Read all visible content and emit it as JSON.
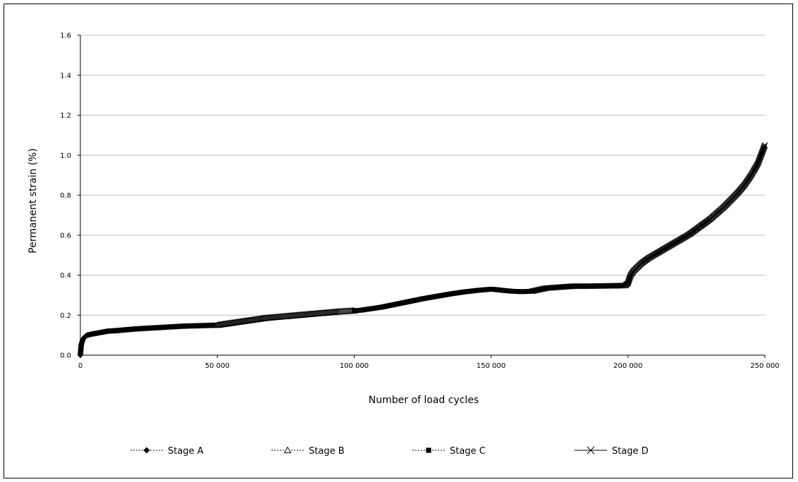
{
  "chart_data": {
    "type": "scatter",
    "title": "",
    "xlabel": "Number of load cycles",
    "ylabel": "Permanent strain (%)",
    "xlim": [
      0,
      250000
    ],
    "ylim": [
      0,
      1.6
    ],
    "x_ticks": [
      {
        "value": 0,
        "label": "0"
      },
      {
        "value": 50000,
        "label": "50 000"
      },
      {
        "value": 100000,
        "label": "100 000"
      },
      {
        "value": 150000,
        "label": "150 000"
      },
      {
        "value": 200000,
        "label": "200 000"
      },
      {
        "value": 250000,
        "label": "250 000"
      }
    ],
    "y_ticks": [
      {
        "value": 0,
        "label": "0.0"
      },
      {
        "value": 0.2,
        "label": "0.2"
      },
      {
        "value": 0.4,
        "label": "0.4"
      },
      {
        "value": 0.6,
        "label": "0.6"
      },
      {
        "value": 0.8,
        "label": "0.8"
      },
      {
        "value": 1.0,
        "label": "1.0"
      },
      {
        "value": 1.2,
        "label": "1.2"
      },
      {
        "value": 1.4,
        "label": "1.4"
      },
      {
        "value": 1.6,
        "label": "1.6"
      }
    ],
    "grid": "horizontal",
    "legend_position": "bottom",
    "series": [
      {
        "name": "Stage A",
        "marker": "diamond",
        "line": "dotted",
        "x": [
          0,
          300,
          800,
          1500,
          2500,
          4000,
          6000,
          8000,
          10000,
          12500,
          15000,
          17500,
          20000,
          22500,
          25000,
          27500,
          30000,
          32500,
          35000,
          37500,
          40000,
          42500,
          45000,
          47500,
          50000
        ],
        "y": [
          0.0,
          0.05,
          0.075,
          0.09,
          0.1,
          0.105,
          0.11,
          0.115,
          0.12,
          0.122,
          0.125,
          0.128,
          0.131,
          0.133,
          0.135,
          0.137,
          0.139,
          0.141,
          0.143,
          0.145,
          0.146,
          0.147,
          0.148,
          0.149,
          0.15
        ]
      },
      {
        "name": "Stage B",
        "marker": "triangle",
        "line": "dotted",
        "x": [
          50000,
          52500,
          55000,
          57500,
          60000,
          62500,
          65000,
          67500,
          70000,
          72500,
          75000,
          77500,
          80000,
          82500,
          85000,
          87500,
          90000,
          92500,
          95000,
          97500,
          100000
        ],
        "y": [
          0.15,
          0.155,
          0.16,
          0.165,
          0.17,
          0.175,
          0.18,
          0.185,
          0.188,
          0.191,
          0.194,
          0.197,
          0.2,
          0.203,
          0.206,
          0.209,
          0.212,
          0.215,
          0.218,
          0.22,
          0.222
        ]
      },
      {
        "name": "Stage C",
        "marker": "square",
        "line": "dotted",
        "x": [
          100000,
          102500,
          105000,
          107500,
          110000,
          112500,
          115000,
          117500,
          120000,
          122500,
          125000,
          127500,
          130000,
          132500,
          135000,
          137500,
          140000,
          142500,
          145000,
          147500,
          150000,
          152500,
          155000,
          157500,
          160000,
          162500,
          165000
        ],
        "y": [
          0.222,
          0.225,
          0.23,
          0.235,
          0.24,
          0.247,
          0.254,
          0.261,
          0.268,
          0.275,
          0.282,
          0.288,
          0.294,
          0.3,
          0.306,
          0.311,
          0.316,
          0.32,
          0.324,
          0.327,
          0.33,
          0.327,
          0.323,
          0.32,
          0.318,
          0.318,
          0.32
        ]
      },
      {
        "name": "Stage D",
        "marker": "x",
        "line": "solid",
        "x": [
          165000,
          170000,
          175000,
          180000,
          185000,
          190000,
          195000,
          199000,
          200000,
          200500,
          201000,
          202000,
          203500,
          205000,
          207500,
          210000,
          212500,
          215000,
          217500,
          220000,
          222500,
          225000,
          227500,
          230000,
          232500,
          235000,
          237500,
          240000,
          242500,
          245000,
          247500,
          250000
        ],
        "y": [
          0.32,
          0.335,
          0.34,
          0.345,
          0.345,
          0.346,
          0.347,
          0.348,
          0.36,
          0.38,
          0.4,
          0.42,
          0.44,
          0.46,
          0.485,
          0.505,
          0.525,
          0.545,
          0.565,
          0.585,
          0.605,
          0.63,
          0.655,
          0.68,
          0.71,
          0.74,
          0.775,
          0.81,
          0.85,
          0.9,
          0.96,
          1.05
        ]
      }
    ]
  }
}
